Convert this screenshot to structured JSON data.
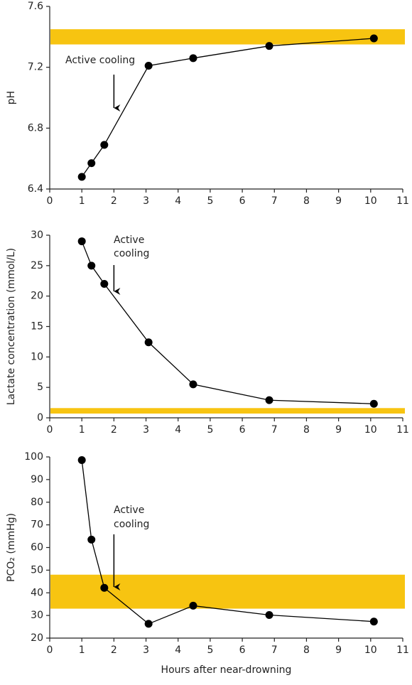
{
  "chart_data": [
    {
      "type": "line",
      "ylabel": "pH",
      "x": [
        1.0,
        1.3,
        1.7,
        3.08,
        4.47,
        6.84,
        10.1
      ],
      "values": [
        6.48,
        6.57,
        6.69,
        7.21,
        7.26,
        7.34,
        7.39
      ],
      "color": "#000000",
      "band": [
        7.35,
        7.45
      ],
      "band_color": "#f7c411",
      "annotation": [
        "Active cooling"
      ],
      "xlim": [
        0,
        11
      ],
      "xticks": [
        0,
        1,
        2,
        3,
        4,
        5,
        6,
        7,
        8,
        9,
        10,
        11
      ],
      "ylim": [
        6.4,
        7.6
      ],
      "yticks": [
        6.4,
        6.8,
        7.2,
        7.6
      ]
    },
    {
      "type": "line",
      "ylabel": "Lactate  concentration  (mmol/L)",
      "x": [
        1.0,
        1.3,
        1.7,
        3.08,
        4.47,
        6.84,
        10.1
      ],
      "values": [
        29,
        25,
        22,
        12.4,
        5.5,
        2.9,
        2.3
      ],
      "color": "#000000",
      "band": [
        0.7,
        1.6
      ],
      "band_color": "#f7c411",
      "annotation": [
        "Active",
        "cooling"
      ],
      "xlim": [
        0,
        11
      ],
      "xticks": [
        0,
        1,
        2,
        3,
        4,
        5,
        6,
        7,
        8,
        9,
        10,
        11
      ],
      "ylim": [
        0,
        30
      ],
      "yticks": [
        0,
        5,
        10,
        15,
        20,
        25,
        30
      ]
    },
    {
      "type": "line",
      "ylabel": "PCO₂ (mmHg)",
      "xlabel": "Hours after near-drowning",
      "x": [
        1.0,
        1.3,
        1.7,
        3.08,
        4.47,
        6.84,
        10.1
      ],
      "values": [
        98.6,
        63.5,
        42.2,
        26.3,
        34.3,
        30.2,
        27.3
      ],
      "color": "#000000",
      "band": [
        33,
        48
      ],
      "band_color": "#f7c411",
      "annotation": [
        "Active",
        "cooling"
      ],
      "xlim": [
        0,
        11
      ],
      "xticks": [
        0,
        1,
        2,
        3,
        4,
        5,
        6,
        7,
        8,
        9,
        10,
        11
      ],
      "ylim": [
        20,
        100
      ],
      "yticks": [
        20,
        30,
        40,
        50,
        60,
        70,
        80,
        90,
        100
      ]
    }
  ]
}
